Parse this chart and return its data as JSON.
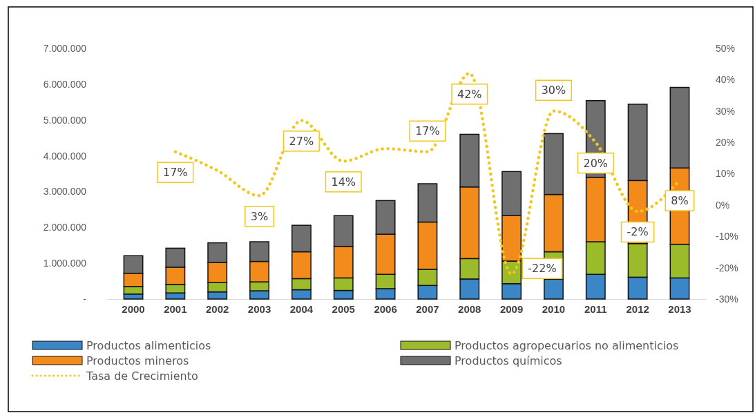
{
  "chart_data": {
    "type": "bar",
    "stacked": true,
    "categories": [
      "2000",
      "2001",
      "2002",
      "2003",
      "2004",
      "2005",
      "2006",
      "2007",
      "2008",
      "2009",
      "2010",
      "2011",
      "2012",
      "2013"
    ],
    "series": [
      {
        "name": "Productos alimenticios",
        "color": "#3b86c6",
        "values": [
          140000,
          170000,
          200000,
          230000,
          260000,
          240000,
          290000,
          380000,
          560000,
          430000,
          560000,
          690000,
          610000,
          590000
        ]
      },
      {
        "name": "Productos agropecuarios no alimenticios",
        "color": "#9cbb2b",
        "values": [
          210000,
          240000,
          260000,
          250000,
          310000,
          350000,
          400000,
          450000,
          570000,
          630000,
          760000,
          910000,
          940000,
          940000
        ]
      },
      {
        "name": "Productos mineros",
        "color": "#f38b1c",
        "values": [
          370000,
          480000,
          560000,
          570000,
          750000,
          880000,
          1120000,
          1320000,
          2000000,
          1270000,
          1600000,
          1800000,
          1760000,
          2130000
        ]
      },
      {
        "name": "Productos químicos",
        "color": "#6f6f6f",
        "values": [
          490000,
          530000,
          550000,
          550000,
          740000,
          860000,
          940000,
          1070000,
          1470000,
          1230000,
          1700000,
          2140000,
          2130000,
          2250000
        ]
      },
      {
        "name": "Tasa de Crecimiento",
        "type": "line",
        "axis": "y2",
        "color": "#f2c71c",
        "line_style": "dotted",
        "marker": "none",
        "values": [
          null,
          17,
          11,
          3,
          27,
          14,
          18,
          17,
          42,
          -22,
          30,
          20,
          -2,
          8
        ],
        "value_labels": [
          null,
          "17%",
          null,
          "3%",
          "27%",
          "14%",
          null,
          "17%",
          "42%",
          "-22%",
          "30%",
          "20%",
          "-2%",
          "8%"
        ]
      }
    ],
    "ylim": [
      0,
      7000000
    ],
    "yticks": [
      {
        "value": 0,
        "label": "-"
      },
      {
        "value": 1000000,
        "label": "1.000.000"
      },
      {
        "value": 2000000,
        "label": "2.000.000"
      },
      {
        "value": 3000000,
        "label": "3.000.000"
      },
      {
        "value": 4000000,
        "label": "4.000.000"
      },
      {
        "value": 5000000,
        "label": "5.000.000"
      },
      {
        "value": 6000000,
        "label": "6.000.000"
      },
      {
        "value": 7000000,
        "label": "7.000.000"
      }
    ],
    "y2lim": [
      -30,
      50
    ],
    "y2ticks": [
      {
        "value": -30,
        "label": "-30%"
      },
      {
        "value": -20,
        "label": "-20%"
      },
      {
        "value": -10,
        "label": "-10%"
      },
      {
        "value": 0,
        "label": "0%"
      },
      {
        "value": 10,
        "label": "10%"
      },
      {
        "value": 20,
        "label": "20%"
      },
      {
        "value": 30,
        "label": "30%"
      },
      {
        "value": 40,
        "label": "40%"
      },
      {
        "value": 50,
        "label": "50%"
      }
    ],
    "grid": false,
    "legend": "bottom"
  }
}
